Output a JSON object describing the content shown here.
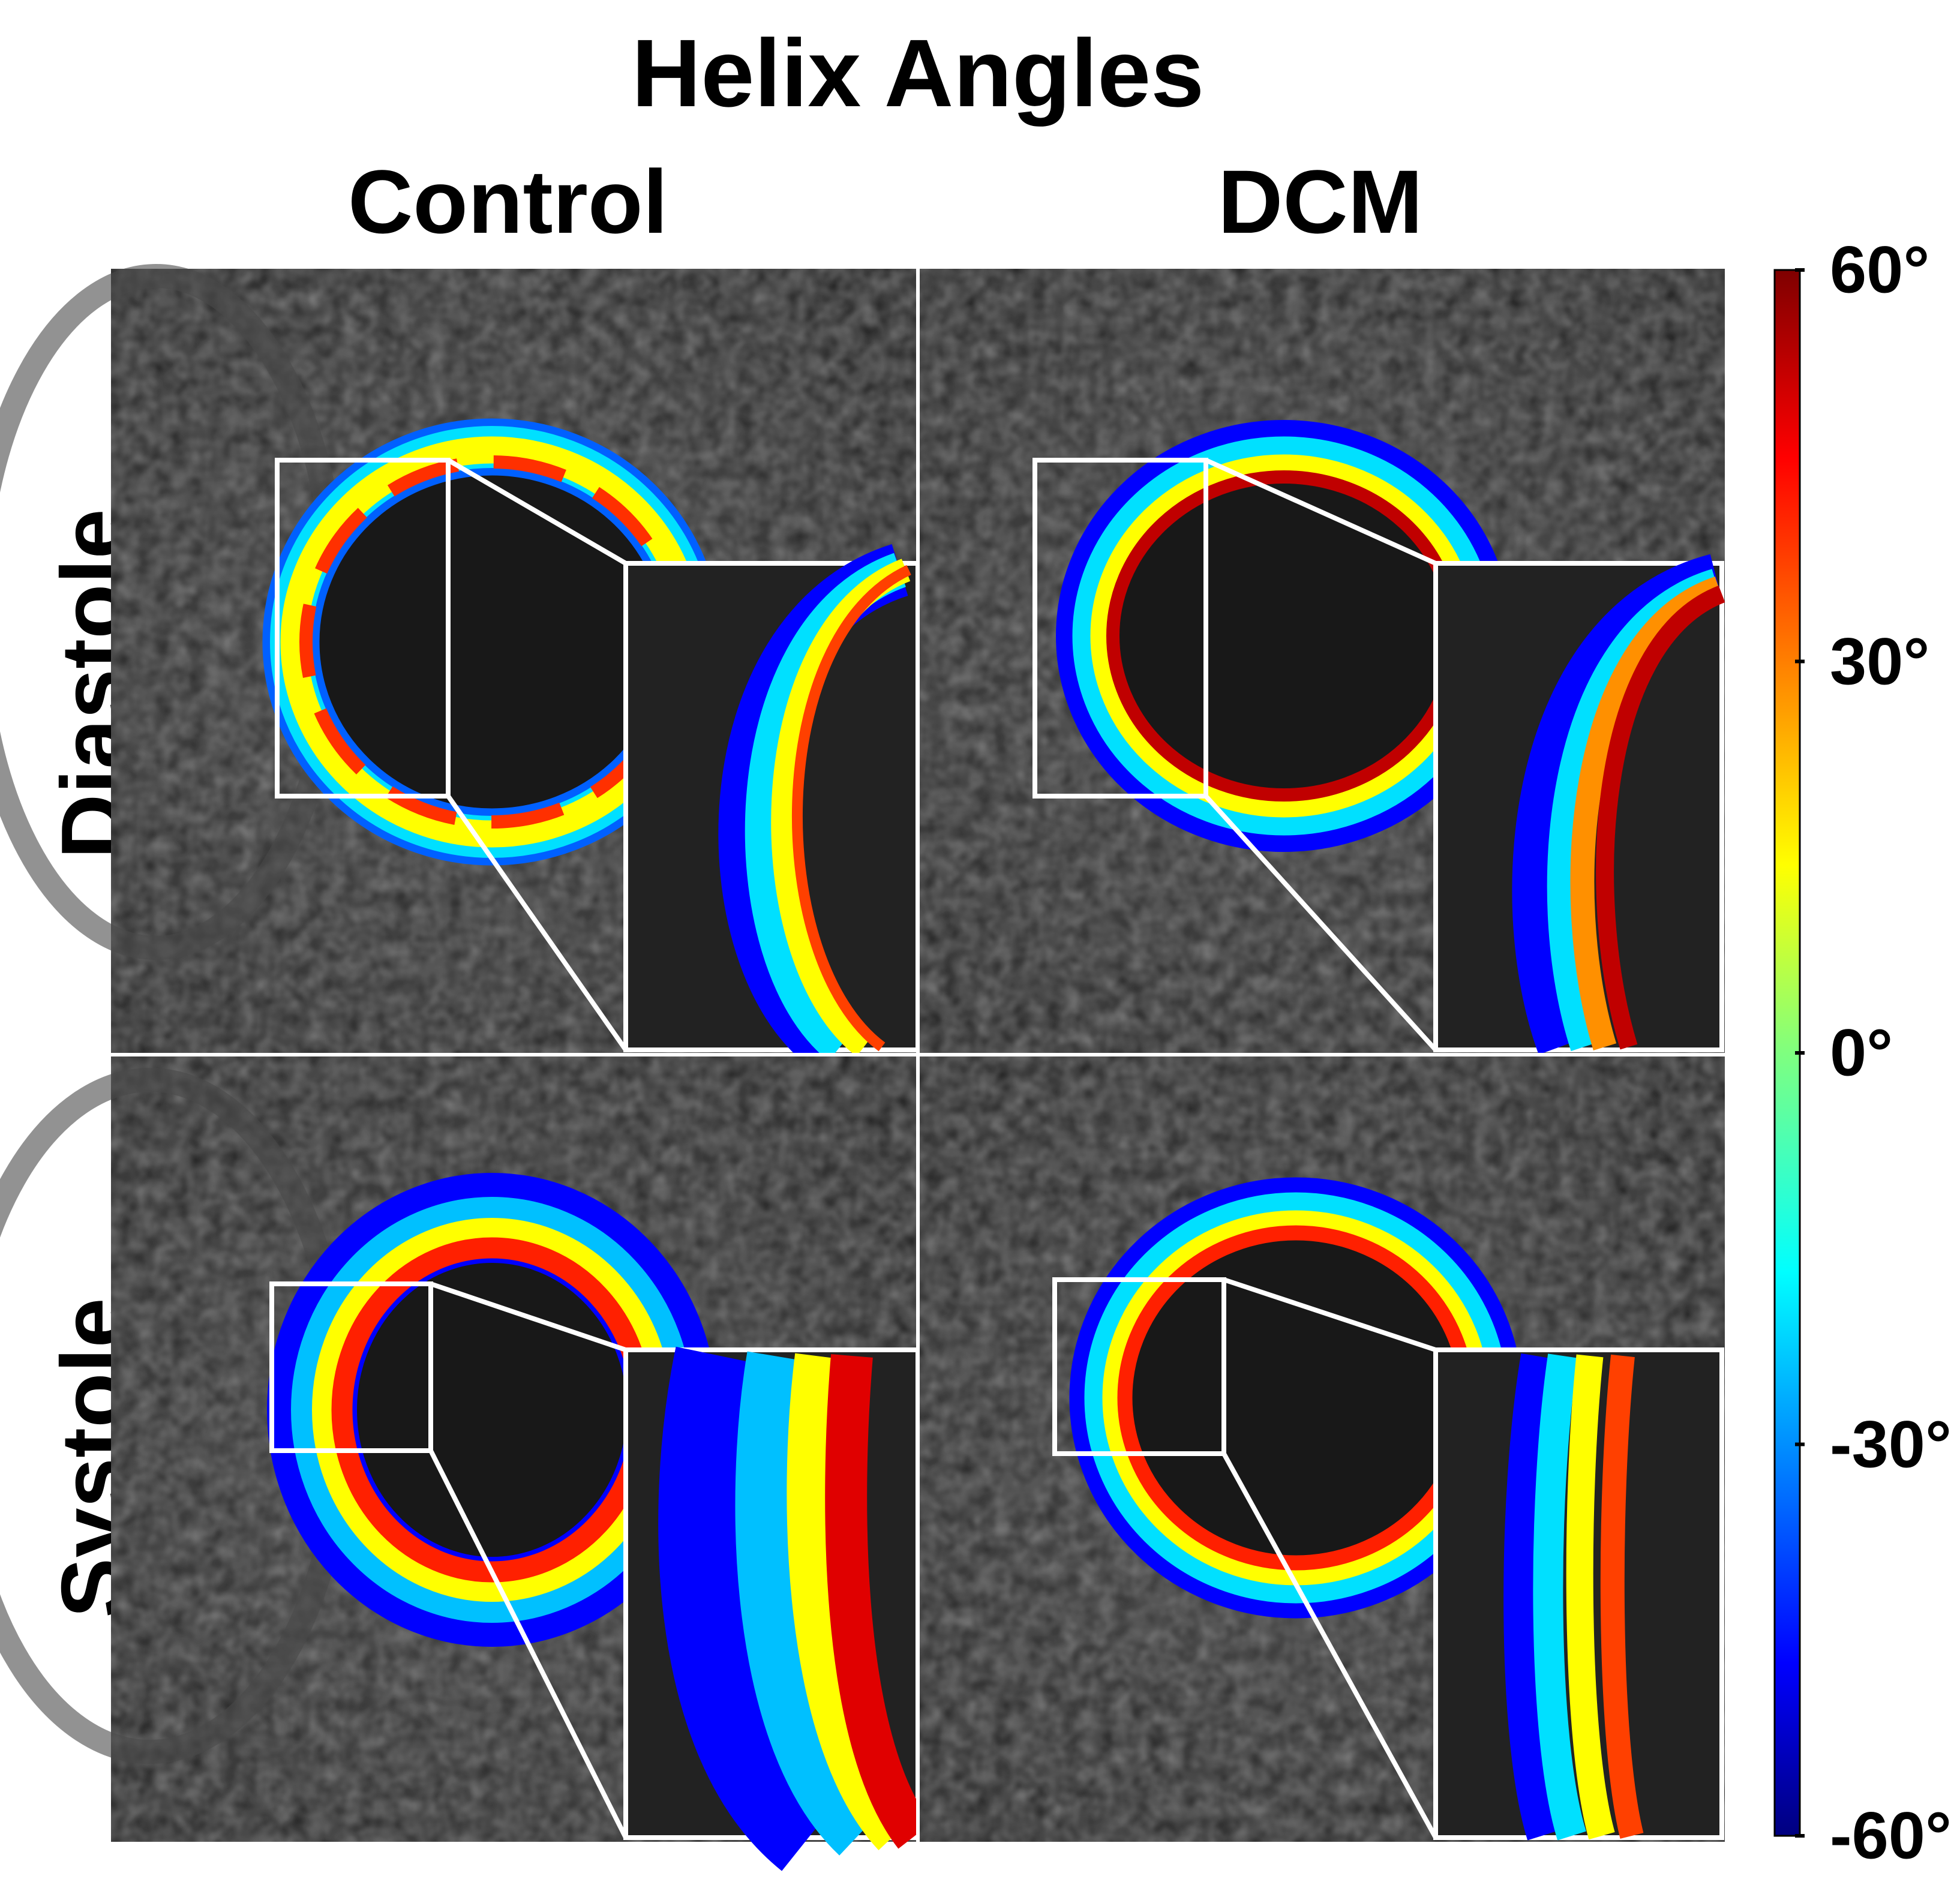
{
  "title": "Helix Angles",
  "columns": [
    "Control",
    "DCM"
  ],
  "rows": [
    "Diastole",
    "Systole"
  ],
  "colorbar": {
    "ticks": [
      "60°",
      "30°",
      "0°",
      "-30°",
      "-60°"
    ],
    "tick_values": [
      60,
      30,
      0,
      -30,
      -60
    ],
    "min": -60,
    "max": 60,
    "colormap": "jet",
    "colors": [
      "#00007f",
      "#0000ff",
      "#00bfff",
      "#7fff7f",
      "#ffff00",
      "#ff7f00",
      "#ff0000",
      "#7f0000"
    ]
  },
  "panels": [
    {
      "name": "control-diastole",
      "row": "Diastole",
      "column": "Control"
    },
    {
      "name": "dcm-diastole",
      "row": "Diastole",
      "column": "DCM"
    },
    {
      "name": "control-systole",
      "row": "Systole",
      "column": "Control"
    },
    {
      "name": "dcm-systole",
      "row": "Systole",
      "column": "DCM"
    }
  ]
}
